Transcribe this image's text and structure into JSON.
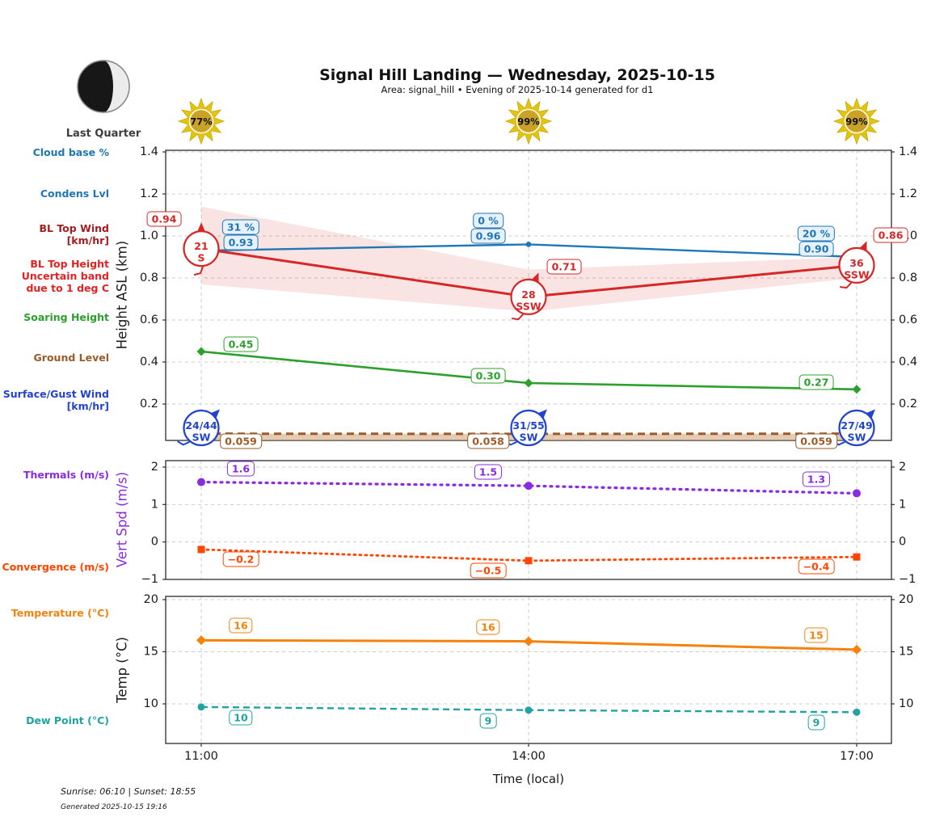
{
  "header": {
    "title": "Signal Hill Landing — Wednesday, 2025-10-15",
    "subtitle": "Area: signal_hill • Evening of 2025-10-14 generated for d1",
    "moon_phase": "Last Quarter",
    "sun_percents": [
      "77%",
      "99%",
      "99%"
    ]
  },
  "sidebar": [
    {
      "id": "cloud-base",
      "lines": [
        "Cloud base %"
      ],
      "color": "#1f77b4"
    },
    {
      "id": "condens-lvl",
      "lines": [
        "Condens Lvl"
      ],
      "color": "#1f77b4"
    },
    {
      "id": "bl-top-wind",
      "lines": [
        "BL Top Wind",
        "[km/hr]"
      ],
      "color": "#a51c1c"
    },
    {
      "id": "bl-top-height",
      "lines": [
        "BL Top Height",
        "Uncertain band",
        "due to 1 deg C"
      ],
      "color": "#e32222"
    },
    {
      "id": "soaring-height",
      "lines": [
        "Soaring Height"
      ],
      "color": "#2ca02c"
    },
    {
      "id": "ground-level",
      "lines": [
        "Ground Level"
      ],
      "color": "#9c5a28"
    },
    {
      "id": "surface-wind",
      "lines": [
        "Surface/Gust Wind",
        "[km/hr]"
      ],
      "color": "#2244cc"
    },
    {
      "id": "thermals",
      "lines": [
        "Thermals (m/s)"
      ],
      "color": "#8a2be2"
    },
    {
      "id": "convergence",
      "lines": [
        "Convergence (m/s)"
      ],
      "color": "#ff4500"
    },
    {
      "id": "temperature",
      "lines": [
        "Temperature (°C)"
      ],
      "color": "#f5820d"
    },
    {
      "id": "dew-point",
      "lines": [
        "Dew Point (°C)"
      ],
      "color": "#21a3a3"
    }
  ],
  "xaxis": {
    "title": "Time (local)",
    "ticks": [
      "11:00",
      "14:00",
      "17:00"
    ]
  },
  "footer": {
    "sun_times": "Sunrise: 06:10 | Sunset: 18:55",
    "generated": "Generated 2025-10-15 19:16"
  },
  "chart_data": [
    {
      "type": "line",
      "panel": "heights",
      "x": [
        "11:00",
        "14:00",
        "17:00"
      ],
      "ylabel": "Height ASL (km)",
      "ylim": [
        0.03,
        1.41
      ],
      "yticks": [
        0.2,
        0.4,
        0.6,
        0.8,
        1.0,
        1.2,
        1.4
      ],
      "grid": true,
      "series": [
        {
          "id": "cloud_base_pct",
          "name": "Cloud base %",
          "labels": [
            "31 %",
            "0 %",
            "20 %"
          ],
          "color": "#1f77b4"
        },
        {
          "id": "condens_lvl",
          "name": "Condens Lvl",
          "values": [
            0.93,
            0.96,
            0.9
          ],
          "labels": [
            "0.93",
            "0.96",
            "0.90"
          ],
          "color": "#1f77b4",
          "style": "solid",
          "marker": "circle"
        },
        {
          "id": "bl_top",
          "name": "BL Top Height",
          "values": [
            0.94,
            0.71,
            0.86
          ],
          "labels": [
            "0.94",
            "0.71",
            "0.86"
          ],
          "band_upper": [
            1.14,
            0.84,
            0.9
          ],
          "band_lower": [
            0.77,
            0.64,
            0.8
          ],
          "color": "#d62728",
          "style": "solid",
          "wind": [
            {
              "speed": "21",
              "dir": "S"
            },
            {
              "speed": "28",
              "dir": "SSW"
            },
            {
              "speed": "36",
              "dir": "SSW"
            }
          ]
        },
        {
          "id": "soaring",
          "name": "Soaring Height",
          "values": [
            0.45,
            0.3,
            0.27
          ],
          "labels": [
            "0.45",
            "0.30",
            "0.27"
          ],
          "color": "#2ca02c",
          "style": "solid",
          "marker": "diamond"
        },
        {
          "id": "ground",
          "name": "Ground Level",
          "values": [
            0.059,
            0.058,
            0.059
          ],
          "labels": [
            "0.059",
            "0.058",
            "0.059"
          ],
          "color": "#9c5a28",
          "style": "dashed",
          "fill_below": true
        },
        {
          "id": "surface_wind",
          "name": "Surface/Gust Wind",
          "color": "#2244cc",
          "wind": [
            {
              "speed": "24/44",
              "dir": "SW"
            },
            {
              "speed": "31/55",
              "dir": "SW"
            },
            {
              "speed": "27/49",
              "dir": "SW"
            }
          ]
        }
      ]
    },
    {
      "type": "line",
      "panel": "vertical-speed",
      "x": [
        "11:00",
        "14:00",
        "17:00"
      ],
      "ylabel": "Vert Spd (m/s)",
      "ylim": [
        -1,
        2.17
      ],
      "yticks": [
        -1,
        0,
        1,
        2
      ],
      "grid": true,
      "series": [
        {
          "id": "thermals",
          "name": "Thermals (m/s)",
          "values": [
            1.6,
            1.5,
            1.3
          ],
          "labels": [
            "1.6",
            "1.5",
            "1.3"
          ],
          "color": "#8a2be2",
          "style": "dotted",
          "marker": "circle"
        },
        {
          "id": "convergence",
          "name": "Convergence (m/s)",
          "values": [
            -0.2,
            -0.5,
            -0.4
          ],
          "labels": [
            "-0.2",
            "-0.5",
            "-0.4"
          ],
          "color": "#ff4500",
          "style": "dotted",
          "marker": "square"
        }
      ]
    },
    {
      "type": "line",
      "panel": "temperature",
      "x": [
        "11:00",
        "14:00",
        "17:00"
      ],
      "ylabel": "Temp (°C)",
      "ylim": [
        6.2,
        20.3
      ],
      "yticks": [
        10,
        15,
        20
      ],
      "grid": true,
      "series": [
        {
          "id": "temperature",
          "name": "Temperature (°C)",
          "values": [
            16.1,
            16.0,
            15.2
          ],
          "labels": [
            "16",
            "16",
            "15"
          ],
          "color": "#f5820d",
          "style": "solid",
          "marker": "diamond"
        },
        {
          "id": "dew_point",
          "name": "Dew Point (°C)",
          "values": [
            9.7,
            9.4,
            9.2
          ],
          "labels": [
            "10",
            "9",
            "9"
          ],
          "color": "#21a3a3",
          "style": "dashed",
          "marker": "circle"
        }
      ]
    }
  ]
}
